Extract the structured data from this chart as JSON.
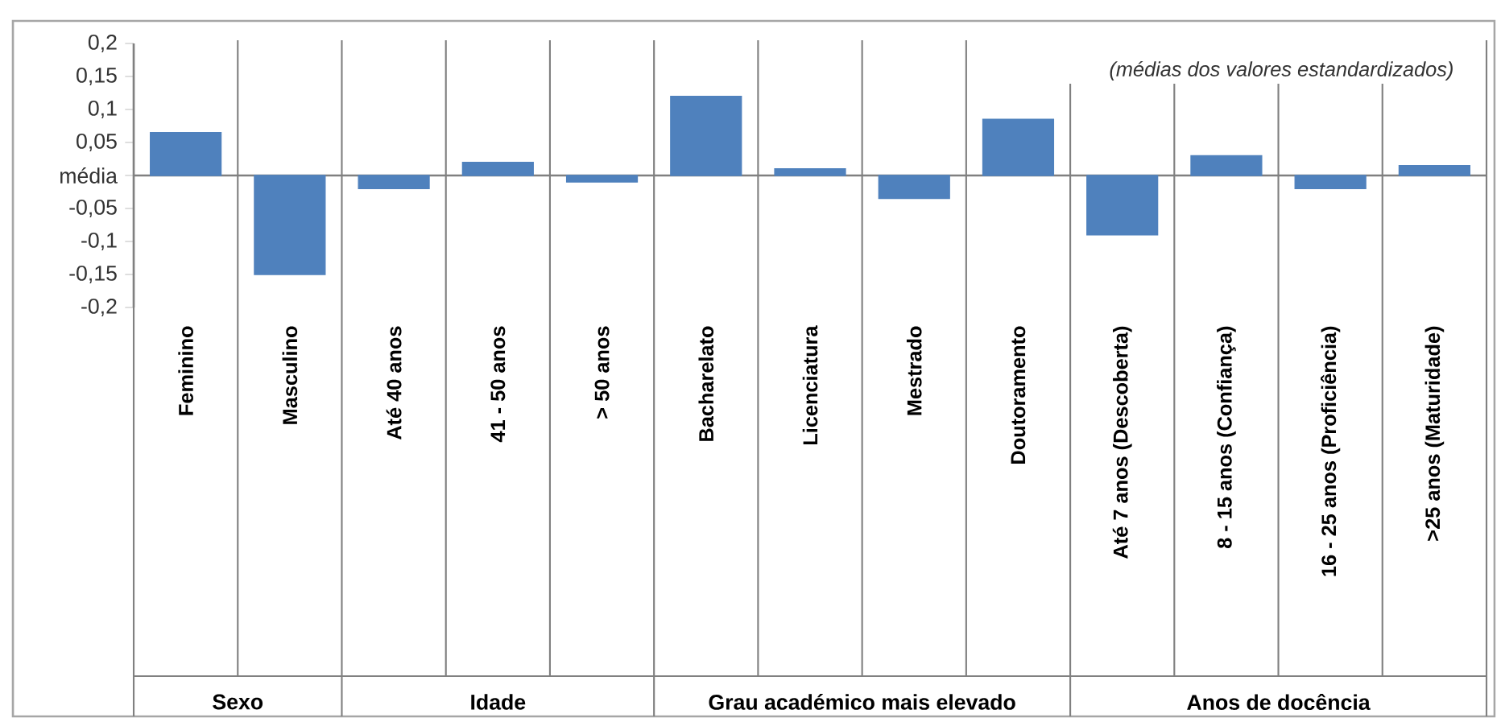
{
  "chart_data": {
    "type": "bar",
    "categories": [
      "Feminino",
      "Masculino",
      "Até 40 anos",
      "41 - 50 anos",
      "> 50 anos",
      "Bacharelato",
      "Licenciatura",
      "Mestrado",
      "Doutoramento",
      "Até 7 anos (Descoberta)",
      "8 - 15 anos (Confiança)",
      "16 - 25 anos (Proficiência)",
      ">25 anos (Maturidade)"
    ],
    "values": [
      0.065,
      -0.15,
      -0.02,
      0.02,
      -0.01,
      0.12,
      0.01,
      -0.035,
      0.085,
      -0.09,
      0.03,
      -0.02,
      0.015
    ],
    "color": "#4f81bd",
    "ylim": [
      -0.2,
      0.2
    ],
    "yticks": [
      {
        "value": -0.2,
        "label": "-0,2"
      },
      {
        "value": -0.15,
        "label": "-0,15"
      },
      {
        "value": -0.1,
        "label": "-0,1"
      },
      {
        "value": -0.05,
        "label": "-0,05"
      },
      {
        "value": 0,
        "label": "média"
      },
      {
        "value": 0.05,
        "label": "0,05"
      },
      {
        "value": 0.1,
        "label": "0,1"
      },
      {
        "value": 0.15,
        "label": "0,15"
      },
      {
        "value": 0.2,
        "label": "0,2"
      }
    ],
    "annotations": [
      "(médias dos valores estandardizados)",
      "Sexo",
      "Idade",
      "Grau académico mais elevado",
      "Anos de docência"
    ],
    "grid": false
  }
}
